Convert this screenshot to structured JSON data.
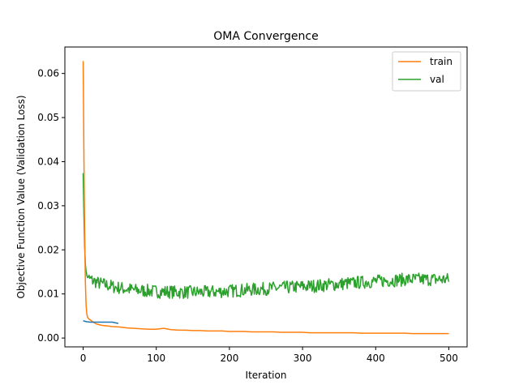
{
  "chart_data": {
    "type": "line",
    "title": "OMA Convergence",
    "xlabel": "Iteration",
    "ylabel": "Objective Function Value (Validation Loss)",
    "xlim": [
      -25,
      525
    ],
    "ylim": [
      -0.002,
      0.066
    ],
    "xticks": [
      0,
      100,
      200,
      300,
      400,
      500
    ],
    "yticks": [
      0.0,
      0.01,
      0.02,
      0.03,
      0.04,
      0.05,
      0.06
    ],
    "ytick_labels": [
      "0.00",
      "0.01",
      "0.02",
      "0.03",
      "0.04",
      "0.05",
      "0.06"
    ],
    "grid": false,
    "legend_position": "top-right",
    "series": [
      {
        "name": "",
        "color": "#1f77b4",
        "x": [
          0,
          5,
          10,
          20,
          30,
          40,
          48
        ],
        "y": [
          0.0039,
          0.0037,
          0.0036,
          0.0036,
          0.0036,
          0.0036,
          0.0033
        ]
      },
      {
        "name": "train",
        "color": "#ff7f0e",
        "x": [
          0,
          1,
          2,
          3,
          4,
          5,
          6,
          8,
          10,
          12,
          15,
          18,
          20,
          25,
          30,
          35,
          40,
          50,
          60,
          70,
          80,
          90,
          100,
          110,
          120,
          130,
          140,
          150,
          160,
          170,
          180,
          190,
          200,
          210,
          220,
          230,
          240,
          250,
          260,
          270,
          280,
          290,
          300,
          310,
          320,
          330,
          340,
          350,
          360,
          370,
          380,
          390,
          400,
          410,
          420,
          430,
          440,
          450,
          460,
          470,
          480,
          490,
          500
        ],
        "y": [
          0.0628,
          0.042,
          0.025,
          0.013,
          0.0075,
          0.0055,
          0.0047,
          0.0043,
          0.0041,
          0.0038,
          0.0035,
          0.0032,
          0.0031,
          0.0029,
          0.0028,
          0.0027,
          0.0026,
          0.0025,
          0.0023,
          0.0022,
          0.0021,
          0.002,
          0.002,
          0.0022,
          0.0019,
          0.0018,
          0.0018,
          0.0017,
          0.0017,
          0.0016,
          0.0016,
          0.0016,
          0.0015,
          0.0015,
          0.0015,
          0.0014,
          0.0014,
          0.0014,
          0.0014,
          0.0013,
          0.0013,
          0.0013,
          0.0013,
          0.0012,
          0.0012,
          0.0012,
          0.0012,
          0.0012,
          0.0012,
          0.0012,
          0.0011,
          0.0011,
          0.0011,
          0.0011,
          0.0011,
          0.0011,
          0.0011,
          0.001,
          0.001,
          0.001,
          0.001,
          0.001,
          0.001
        ]
      },
      {
        "name": "val",
        "color": "#2ca02c",
        "x": [
          0,
          1,
          2,
          3,
          4,
          5,
          6,
          8,
          10,
          12,
          15,
          18,
          20,
          25,
          30,
          35,
          40,
          45,
          50,
          55,
          60,
          65,
          70,
          75,
          80,
          85,
          90,
          95,
          100,
          105,
          110,
          115,
          120,
          125,
          130,
          135,
          140,
          145,
          150,
          155,
          160,
          165,
          170,
          175,
          180,
          185,
          190,
          195,
          200,
          205,
          210,
          215,
          220,
          225,
          230,
          235,
          240,
          245,
          250,
          255,
          260,
          265,
          270,
          275,
          280,
          285,
          290,
          295,
          300,
          305,
          310,
          315,
          320,
          325,
          330,
          335,
          340,
          345,
          350,
          355,
          360,
          365,
          370,
          375,
          380,
          385,
          390,
          395,
          400,
          405,
          410,
          415,
          420,
          425,
          430,
          435,
          440,
          445,
          450,
          455,
          460,
          465,
          470,
          475,
          480,
          485,
          490,
          495,
          500
        ],
        "y": [
          0.0377,
          0.028,
          0.021,
          0.017,
          0.015,
          0.0142,
          0.0138,
          0.0135,
          0.0133,
          0.0131,
          0.0129,
          0.0127,
          0.0125,
          0.0123,
          0.0121,
          0.0119,
          0.0117,
          0.0115,
          0.0114,
          0.0112,
          0.0111,
          0.011,
          0.0109,
          0.0108,
          0.0108,
          0.0107,
          0.0107,
          0.0106,
          0.0106,
          0.0105,
          0.0105,
          0.0105,
          0.0105,
          0.0104,
          0.0104,
          0.0104,
          0.0104,
          0.0104,
          0.0104,
          0.0104,
          0.0104,
          0.0104,
          0.0104,
          0.0105,
          0.0105,
          0.0105,
          0.0106,
          0.0106,
          0.0107,
          0.0107,
          0.0108,
          0.0108,
          0.0109,
          0.0109,
          0.011,
          0.011,
          0.0111,
          0.0111,
          0.0112,
          0.0112,
          0.0113,
          0.0113,
          0.0114,
          0.0114,
          0.0115,
          0.0115,
          0.0116,
          0.0116,
          0.0117,
          0.0117,
          0.0118,
          0.0118,
          0.0119,
          0.0119,
          0.012,
          0.0121,
          0.0121,
          0.0122,
          0.0122,
          0.0123,
          0.0124,
          0.0124,
          0.0125,
          0.0126,
          0.0126,
          0.0127,
          0.0128,
          0.0128,
          0.0129,
          0.0129,
          0.013,
          0.013,
          0.0131,
          0.0131,
          0.0132,
          0.0132,
          0.0133,
          0.0133,
          0.0133,
          0.0133,
          0.0133,
          0.0133,
          0.0133,
          0.0133,
          0.0133,
          0.0133,
          0.0133,
          0.0133,
          0.0133
        ],
        "noise_amplitude": 0.0015
      }
    ]
  }
}
